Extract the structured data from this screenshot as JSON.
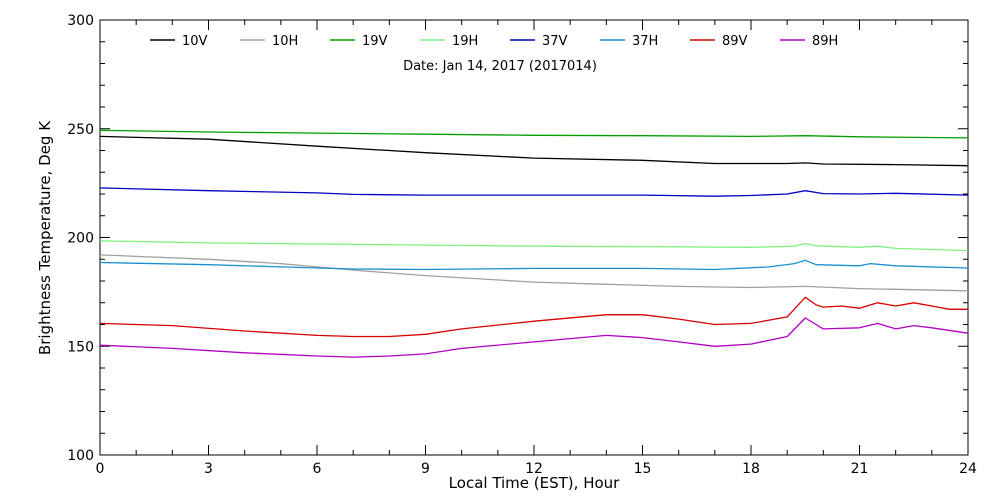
{
  "chart_data": {
    "type": "line",
    "xlabel": "Local Time (EST), Hour",
    "ylabel": "Brightness Temperature, Deg K",
    "xlim": [
      0,
      24
    ],
    "ylim": [
      100,
      300
    ],
    "x_ticks": [
      0,
      3,
      6,
      9,
      12,
      15,
      18,
      21,
      24
    ],
    "y_ticks": [
      100,
      150,
      200,
      250,
      300
    ],
    "annotation": "Date: Jan 14, 2017 (2017014)",
    "grid": false,
    "legend_position": "top",
    "series": [
      {
        "name": "10V",
        "color": "#000000",
        "points": [
          [
            0,
            246.5
          ],
          [
            3,
            245.2
          ],
          [
            6,
            242
          ],
          [
            9,
            239
          ],
          [
            12,
            236.5
          ],
          [
            15,
            235.5
          ],
          [
            17,
            234
          ],
          [
            19,
            234
          ],
          [
            19.5,
            234.3
          ],
          [
            20,
            233.8
          ],
          [
            22,
            233.5
          ],
          [
            24,
            233
          ]
        ]
      },
      {
        "name": "10H",
        "color": "#a0a0a0",
        "points": [
          [
            0,
            192
          ],
          [
            3,
            190
          ],
          [
            5,
            188
          ],
          [
            7,
            185
          ],
          [
            9,
            182.5
          ],
          [
            12,
            179.5
          ],
          [
            14,
            178.5
          ],
          [
            16,
            177.5
          ],
          [
            18,
            177
          ],
          [
            19.5,
            177.5
          ],
          [
            21,
            176.5
          ],
          [
            24,
            175.5
          ]
        ]
      },
      {
        "name": "19V",
        "color": "#00a000",
        "points": [
          [
            0,
            249.3
          ],
          [
            3,
            248.5
          ],
          [
            6,
            248
          ],
          [
            9,
            247.5
          ],
          [
            12,
            247
          ],
          [
            15,
            246.8
          ],
          [
            18,
            246.5
          ],
          [
            19.5,
            246.8
          ],
          [
            21,
            246.3
          ],
          [
            24,
            245.8
          ]
        ]
      },
      {
        "name": "19H",
        "color": "#80f080",
        "points": [
          [
            0,
            198.5
          ],
          [
            3,
            197.5
          ],
          [
            6,
            197
          ],
          [
            9,
            196.5
          ],
          [
            12,
            196
          ],
          [
            15,
            195.8
          ],
          [
            18,
            195.5
          ],
          [
            19.2,
            196
          ],
          [
            19.5,
            197.2
          ],
          [
            19.8,
            196.2
          ],
          [
            21,
            195.5
          ],
          [
            21.5,
            196
          ],
          [
            22,
            195
          ],
          [
            24,
            194
          ]
        ]
      },
      {
        "name": "37V",
        "color": "#0000c0",
        "points": [
          [
            0,
            222.8
          ],
          [
            3,
            221.5
          ],
          [
            6,
            220.5
          ],
          [
            7,
            219.8
          ],
          [
            9,
            219.5
          ],
          [
            12,
            219.5
          ],
          [
            15,
            219.5
          ],
          [
            17,
            219
          ],
          [
            18,
            219.3
          ],
          [
            19,
            220
          ],
          [
            19.5,
            221.5
          ],
          [
            20,
            220.2
          ],
          [
            21,
            220
          ],
          [
            22,
            220.3
          ],
          [
            24,
            219.5
          ]
        ]
      },
      {
        "name": "37H",
        "color": "#1890d0",
        "points": [
          [
            0,
            188.5
          ],
          [
            3,
            187.5
          ],
          [
            5,
            186.5
          ],
          [
            7,
            185.5
          ],
          [
            9,
            185.3
          ],
          [
            12,
            185.8
          ],
          [
            15,
            185.8
          ],
          [
            17,
            185.3
          ],
          [
            18.5,
            186.5
          ],
          [
            19.2,
            188
          ],
          [
            19.5,
            189.5
          ],
          [
            19.8,
            187.5
          ],
          [
            21,
            187
          ],
          [
            21.3,
            188
          ],
          [
            22,
            187
          ],
          [
            24,
            186
          ]
        ]
      },
      {
        "name": "89V",
        "color": "#d80000",
        "points": [
          [
            0,
            160.5
          ],
          [
            2,
            159.5
          ],
          [
            4,
            157
          ],
          [
            6,
            155
          ],
          [
            7,
            154.5
          ],
          [
            8,
            154.5
          ],
          [
            9,
            155.5
          ],
          [
            10,
            158
          ],
          [
            12,
            161.5
          ],
          [
            14,
            164.5
          ],
          [
            15,
            164.5
          ],
          [
            16,
            162.5
          ],
          [
            17,
            160
          ],
          [
            18,
            160.5
          ],
          [
            19,
            163.5
          ],
          [
            19.5,
            172.5
          ],
          [
            19.8,
            169
          ],
          [
            20,
            168
          ],
          [
            20.5,
            168.5
          ],
          [
            21,
            167.5
          ],
          [
            21.5,
            170
          ],
          [
            22,
            168.5
          ],
          [
            22.5,
            170
          ],
          [
            23,
            168.5
          ],
          [
            23.5,
            167
          ],
          [
            24,
            167
          ]
        ]
      },
      {
        "name": "89H",
        "color": "#b000c0",
        "points": [
          [
            0,
            150.5
          ],
          [
            2,
            149
          ],
          [
            4,
            147
          ],
          [
            6,
            145.5
          ],
          [
            7,
            145
          ],
          [
            8,
            145.5
          ],
          [
            9,
            146.5
          ],
          [
            10,
            149
          ],
          [
            12,
            152
          ],
          [
            14,
            155
          ],
          [
            15,
            154
          ],
          [
            16,
            152
          ],
          [
            17,
            150
          ],
          [
            18,
            151
          ],
          [
            19,
            154.5
          ],
          [
            19.5,
            163
          ],
          [
            19.8,
            160
          ],
          [
            20,
            158
          ],
          [
            21,
            158.5
          ],
          [
            21.5,
            160.5
          ],
          [
            22,
            158
          ],
          [
            22.5,
            159.5
          ],
          [
            23,
            158.5
          ],
          [
            24,
            156
          ]
        ]
      }
    ]
  }
}
